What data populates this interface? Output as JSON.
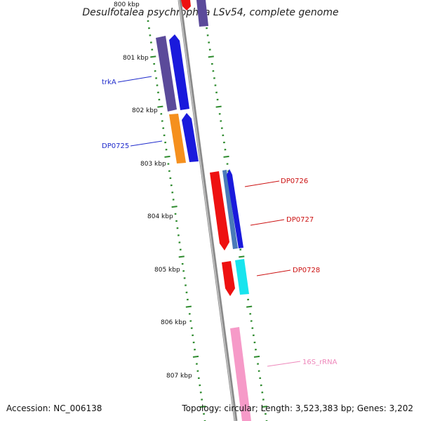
{
  "title": "Desulfotalea psychrophila LSv54, complete genome",
  "accession": "Accession: NC_006138",
  "topology": "Topology: circular; Length: 3,523,383 bp; Genes: 3,202",
  "colors": {
    "backbone": "#8a8a8a",
    "ruler_ticks": "#2e8b2e",
    "purple": "#5b4a9a",
    "blue": "#1a1adc",
    "orange": "#f5901e",
    "red": "#ee1111",
    "steelblue": "#4a7ab8",
    "cyan": "#18e4ee",
    "pink": "#f69ac8",
    "label_blue": "#1f2bcc",
    "label_red": "#cc1111",
    "label_pink": "#ee88bb"
  },
  "ruler_labels": [
    {
      "text": "800 kbp"
    },
    {
      "text": "801 kbp"
    },
    {
      "text": "802 kbp"
    },
    {
      "text": "803 kbp"
    },
    {
      "text": "804 kbp"
    },
    {
      "text": "805 kbp"
    },
    {
      "text": "806 kbp"
    },
    {
      "text": "807 kbp"
    }
  ],
  "gene_labels": [
    {
      "text": "trkA",
      "color": "label_blue"
    },
    {
      "text": "DP0725",
      "color": "label_blue"
    },
    {
      "text": "DP0726",
      "color": "label_red"
    },
    {
      "text": "DP0727",
      "color": "label_red"
    },
    {
      "text": "DP0728",
      "color": "label_red"
    },
    {
      "text": "16S_rRNA",
      "color": "label_pink"
    }
  ]
}
